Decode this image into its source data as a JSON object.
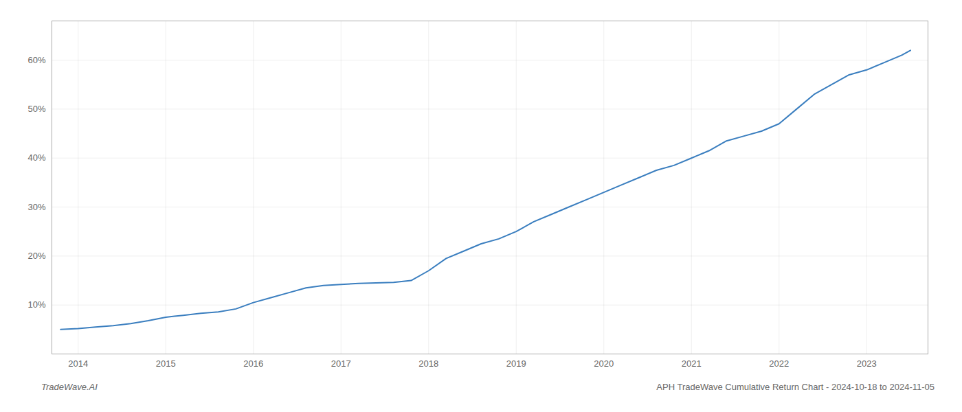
{
  "chart_data": {
    "type": "line",
    "annotations": [
      "TradeWave.AI",
      "APH TradeWave Cumulative Return Chart - 2024-10-18 to 2024-11-05"
    ],
    "color": "#3a7ebf",
    "x": [
      2013.8,
      2014.0,
      2014.2,
      2014.4,
      2014.6,
      2014.8,
      2015.0,
      2015.2,
      2015.4,
      2015.6,
      2015.8,
      2016.0,
      2016.2,
      2016.4,
      2016.6,
      2016.8,
      2017.0,
      2017.2,
      2017.4,
      2017.6,
      2017.8,
      2018.0,
      2018.2,
      2018.4,
      2018.6,
      2018.8,
      2019.0,
      2019.2,
      2019.4,
      2019.6,
      2019.8,
      2020.0,
      2020.2,
      2020.4,
      2020.6,
      2020.8,
      2021.0,
      2021.2,
      2021.4,
      2021.6,
      2021.8,
      2022.0,
      2022.2,
      2022.4,
      2022.6,
      2022.8,
      2023.0,
      2023.2,
      2023.4,
      2023.5
    ],
    "values": [
      5.0,
      5.2,
      5.5,
      5.8,
      6.2,
      6.8,
      7.5,
      7.9,
      8.3,
      8.6,
      9.2,
      10.5,
      11.5,
      12.5,
      13.5,
      14.0,
      14.2,
      14.4,
      14.5,
      14.6,
      15.0,
      17.0,
      19.5,
      21.0,
      22.5,
      23.5,
      25.0,
      27.0,
      28.5,
      30.0,
      31.5,
      33.0,
      34.5,
      36.0,
      37.5,
      38.5,
      40.0,
      41.5,
      43.5,
      44.5,
      45.5,
      47.0,
      50.0,
      53.0,
      55.0,
      57.0,
      58.0,
      59.5,
      61.0,
      62.0
    ],
    "xlim": [
      2013.7,
      2023.7
    ],
    "xticks": [
      2014,
      2015,
      2016,
      2017,
      2018,
      2019,
      2020,
      2021,
      2022,
      2023
    ],
    "ylim": [
      0,
      68
    ],
    "yticks": [
      {
        "value": 0,
        "label": null
      },
      {
        "value": 10,
        "label": "10%"
      },
      {
        "value": 20,
        "label": "20%"
      },
      {
        "value": 30,
        "label": "30%"
      },
      {
        "value": 40,
        "label": "40%"
      },
      {
        "value": 50,
        "label": "50%"
      },
      {
        "value": 60,
        "label": "60%"
      }
    ],
    "grid": true
  }
}
